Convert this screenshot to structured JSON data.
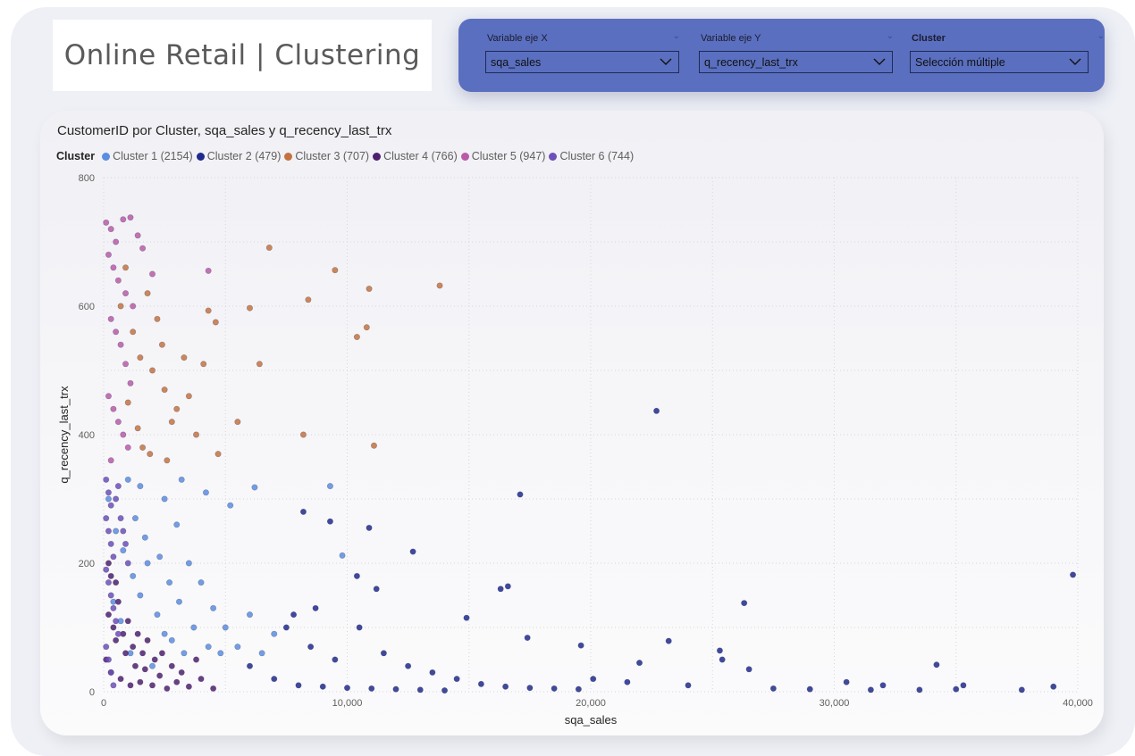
{
  "page": {
    "title": "Online Retail | Clustering"
  },
  "filters": [
    {
      "label": "Variable eje X",
      "value": "sqa_sales"
    },
    {
      "label": "Variable eje Y",
      "value": "q_recency_last_trx"
    },
    {
      "label": "Cluster",
      "value": "Selección múltiple"
    }
  ],
  "colors": {
    "panel_background": "#5a6fbf",
    "cluster_1": "#5b8de0",
    "cluster_2": "#1f2a8c",
    "cluster_3": "#c4723f",
    "cluster_4": "#4f1f6e",
    "cluster_5": "#b95aa8",
    "cluster_6": "#6c4fb8"
  },
  "chart_data": {
    "type": "scatter",
    "title": "CustomerID por Cluster, sqa_sales y q_recency_last_trx",
    "xlabel": "sqa_sales",
    "ylabel": "q_recency_last_trx",
    "xlim": [
      0,
      40000
    ],
    "ylim": [
      0,
      800
    ],
    "x_ticks": [
      "0",
      "10,000",
      "20,000",
      "30,000",
      "40,000"
    ],
    "y_ticks": [
      "0",
      "200",
      "400",
      "600",
      "800"
    ],
    "grid": true,
    "legend_title": "Cluster",
    "legend_position": "top-left",
    "series": [
      {
        "name": "Cluster 1 (2154)",
        "color": "#5b8de0",
        "points": [
          [
            200,
            300
          ],
          [
            500,
            250
          ],
          [
            800,
            220
          ],
          [
            1200,
            180
          ],
          [
            1500,
            150
          ],
          [
            1800,
            200
          ],
          [
            2200,
            120
          ],
          [
            2500,
            90
          ],
          [
            3000,
            260
          ],
          [
            3500,
            200
          ],
          [
            4000,
            170
          ],
          [
            4500,
            130
          ],
          [
            5000,
            100
          ],
          [
            6000,
            120
          ],
          [
            6500,
            60
          ],
          [
            7000,
            90
          ],
          [
            1000,
            330
          ],
          [
            1500,
            320
          ],
          [
            2500,
            300
          ],
          [
            3200,
            330
          ],
          [
            4200,
            310
          ],
          [
            5200,
            290
          ],
          [
            6200,
            318
          ],
          [
            9300,
            320
          ],
          [
            9800,
            212
          ],
          [
            2800,
            80
          ],
          [
            3300,
            60
          ],
          [
            2000,
            40
          ],
          [
            4800,
            60
          ],
          [
            5500,
            70
          ],
          [
            400,
            140
          ],
          [
            700,
            110
          ],
          [
            1100,
            60
          ],
          [
            1300,
            270
          ],
          [
            1700,
            240
          ],
          [
            2300,
            210
          ],
          [
            2700,
            170
          ],
          [
            3100,
            140
          ],
          [
            3700,
            100
          ],
          [
            4300,
            70
          ]
        ]
      },
      {
        "name": "Cluster 2 (479)",
        "color": "#1f2a8c",
        "points": [
          [
            22700,
            437
          ],
          [
            17100,
            307
          ],
          [
            39800,
            182
          ],
          [
            10900,
            255
          ],
          [
            9300,
            265
          ],
          [
            12700,
            218
          ],
          [
            8200,
            280
          ],
          [
            26300,
            138
          ],
          [
            16300,
            160
          ],
          [
            16600,
            164
          ],
          [
            14900,
            115
          ],
          [
            17400,
            84
          ],
          [
            23200,
            79
          ],
          [
            25300,
            64
          ],
          [
            25400,
            50
          ],
          [
            19600,
            72
          ],
          [
            34200,
            42
          ],
          [
            22000,
            45
          ],
          [
            26500,
            35
          ],
          [
            20100,
            20
          ],
          [
            21500,
            15
          ],
          [
            24000,
            10
          ],
          [
            27500,
            5
          ],
          [
            29000,
            4
          ],
          [
            30500,
            15
          ],
          [
            31500,
            3
          ],
          [
            32000,
            10
          ],
          [
            33500,
            3
          ],
          [
            35000,
            4
          ],
          [
            35300,
            10
          ],
          [
            37700,
            3
          ],
          [
            39000,
            8
          ],
          [
            10500,
            100
          ],
          [
            11500,
            60
          ],
          [
            12500,
            40
          ],
          [
            13500,
            30
          ],
          [
            14500,
            20
          ],
          [
            15500,
            12
          ],
          [
            16500,
            8
          ],
          [
            17500,
            6
          ],
          [
            18500,
            5
          ],
          [
            19500,
            4
          ],
          [
            7500,
            100
          ],
          [
            8500,
            70
          ],
          [
            9500,
            50
          ],
          [
            6000,
            40
          ],
          [
            7000,
            20
          ],
          [
            8000,
            10
          ],
          [
            9000,
            8
          ],
          [
            10000,
            6
          ],
          [
            11000,
            5
          ],
          [
            12000,
            4
          ],
          [
            13000,
            3
          ],
          [
            14000,
            2
          ],
          [
            11200,
            160
          ],
          [
            10400,
            180
          ],
          [
            8700,
            130
          ],
          [
            7800,
            120
          ]
        ]
      },
      {
        "name": "Cluster 3 (707)",
        "color": "#c4723f",
        "points": [
          [
            6800,
            691
          ],
          [
            9500,
            656
          ],
          [
            8400,
            610
          ],
          [
            10900,
            627
          ],
          [
            13800,
            632
          ],
          [
            6000,
            597
          ],
          [
            10800,
            567
          ],
          [
            10400,
            552
          ],
          [
            6400,
            510
          ],
          [
            11100,
            383
          ],
          [
            8200,
            400
          ],
          [
            5500,
            420
          ],
          [
            4700,
            370
          ],
          [
            3800,
            400
          ],
          [
            3000,
            440
          ],
          [
            2500,
            470
          ],
          [
            2000,
            500
          ],
          [
            1500,
            520
          ],
          [
            1200,
            560
          ],
          [
            1800,
            620
          ],
          [
            900,
            660
          ],
          [
            2200,
            580
          ],
          [
            2800,
            420
          ],
          [
            3500,
            460
          ],
          [
            4100,
            510
          ],
          [
            4600,
            575
          ],
          [
            4300,
            593
          ],
          [
            1600,
            380
          ],
          [
            2600,
            360
          ],
          [
            700,
            600
          ],
          [
            1000,
            450
          ],
          [
            1400,
            410
          ],
          [
            1900,
            370
          ],
          [
            2400,
            540
          ],
          [
            3300,
            520
          ]
        ]
      },
      {
        "name": "Cluster 4 (766)",
        "color": "#4f1f6e",
        "points": [
          [
            100,
            50
          ],
          [
            300,
            30
          ],
          [
            500,
            80
          ],
          [
            700,
            20
          ],
          [
            900,
            60
          ],
          [
            1100,
            10
          ],
          [
            1300,
            40
          ],
          [
            1500,
            15
          ],
          [
            1700,
            35
          ],
          [
            2000,
            10
          ],
          [
            2300,
            25
          ],
          [
            2600,
            5
          ],
          [
            3000,
            15
          ],
          [
            3500,
            8
          ],
          [
            4000,
            20
          ],
          [
            4500,
            5
          ],
          [
            200,
            120
          ],
          [
            400,
            100
          ],
          [
            600,
            140
          ],
          [
            800,
            90
          ],
          [
            1000,
            110
          ],
          [
            1200,
            70
          ],
          [
            1400,
            90
          ],
          [
            1600,
            60
          ],
          [
            1800,
            80
          ],
          [
            2100,
            50
          ],
          [
            2400,
            60
          ],
          [
            2800,
            40
          ],
          [
            3200,
            30
          ],
          [
            3800,
            50
          ],
          [
            200,
            200
          ],
          [
            300,
            180
          ],
          [
            500,
            170
          ]
        ]
      },
      {
        "name": "Cluster 5 (947)",
        "color": "#b95aa8",
        "points": [
          [
            100,
            730
          ],
          [
            300,
            720
          ],
          [
            500,
            700
          ],
          [
            800,
            735
          ],
          [
            1100,
            738
          ],
          [
            1400,
            710
          ],
          [
            200,
            680
          ],
          [
            400,
            660
          ],
          [
            600,
            640
          ],
          [
            900,
            620
          ],
          [
            1200,
            600
          ],
          [
            300,
            580
          ],
          [
            500,
            560
          ],
          [
            700,
            540
          ],
          [
            900,
            510
          ],
          [
            1100,
            480
          ],
          [
            200,
            460
          ],
          [
            400,
            440
          ],
          [
            600,
            420
          ],
          [
            800,
            400
          ],
          [
            1000,
            380
          ],
          [
            300,
            360
          ],
          [
            4300,
            655
          ],
          [
            2000,
            650
          ],
          [
            1600,
            690
          ]
        ]
      },
      {
        "name": "Cluster 6 (744)",
        "color": "#6c4fb8",
        "points": [
          [
            100,
            330
          ],
          [
            200,
            310
          ],
          [
            300,
            290
          ],
          [
            100,
            270
          ],
          [
            200,
            250
          ],
          [
            300,
            230
          ],
          [
            400,
            210
          ],
          [
            100,
            190
          ],
          [
            200,
            170
          ],
          [
            300,
            150
          ],
          [
            400,
            130
          ],
          [
            500,
            110
          ],
          [
            600,
            90
          ],
          [
            100,
            70
          ],
          [
            200,
            50
          ],
          [
            300,
            30
          ],
          [
            400,
            10
          ],
          [
            700,
            270
          ],
          [
            800,
            250
          ],
          [
            900,
            230
          ],
          [
            500,
            300
          ],
          [
            600,
            320
          ],
          [
            1000,
            200
          ]
        ]
      }
    ]
  }
}
